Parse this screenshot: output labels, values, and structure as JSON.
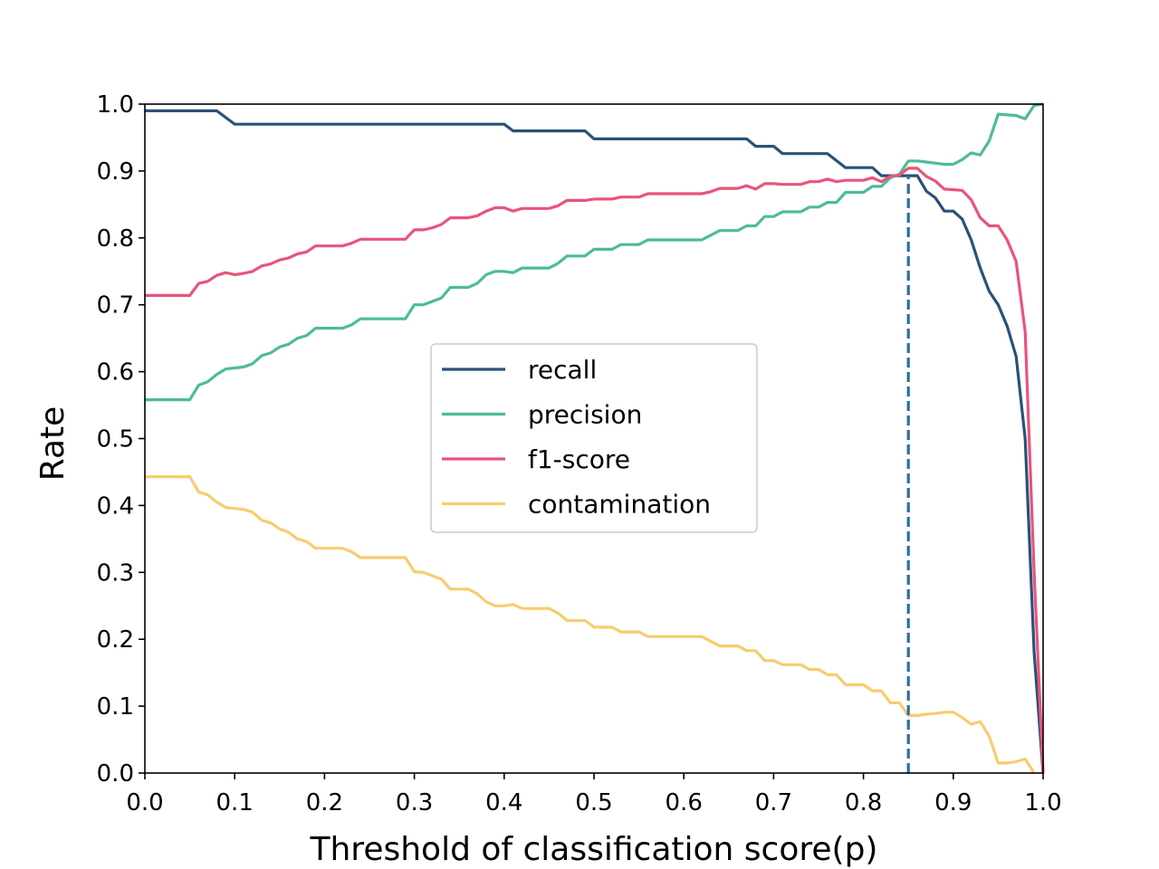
{
  "chart_data": {
    "type": "line",
    "title": "",
    "xlabel": "Threshold of classification score(p)",
    "ylabel": "Rate",
    "xlim": [
      0,
      1
    ],
    "ylim": [
      0,
      1
    ],
    "x_ticks": [
      "0.0",
      "0.1",
      "0.2",
      "0.3",
      "0.4",
      "0.5",
      "0.6",
      "0.7",
      "0.8",
      "0.9",
      "1.0"
    ],
    "y_ticks": [
      "0.0",
      "0.1",
      "0.2",
      "0.3",
      "0.4",
      "0.5",
      "0.6",
      "0.7",
      "0.8",
      "0.9",
      "1.0"
    ],
    "grid": false,
    "legend_position": "center",
    "threshold_line": {
      "x": 0.85,
      "y_top": 0.893,
      "color": "#2a6f9e",
      "style": "dashed"
    },
    "series": [
      {
        "name": "recall",
        "color": "#2b5178",
        "points": [
          [
            0,
            0.99
          ],
          [
            0.08,
            0.99
          ],
          [
            0.1,
            0.97
          ],
          [
            0.4,
            0.97
          ],
          [
            0.41,
            0.96
          ],
          [
            0.49,
            0.96
          ],
          [
            0.5,
            0.948
          ],
          [
            0.67,
            0.948
          ],
          [
            0.68,
            0.937
          ],
          [
            0.7,
            0.937
          ],
          [
            0.71,
            0.926
          ],
          [
            0.76,
            0.926
          ],
          [
            0.78,
            0.905
          ],
          [
            0.81,
            0.905
          ],
          [
            0.82,
            0.893
          ],
          [
            0.86,
            0.893
          ],
          [
            0.87,
            0.87
          ],
          [
            0.88,
            0.86
          ],
          [
            0.89,
            0.84
          ],
          [
            0.9,
            0.84
          ],
          [
            0.91,
            0.828
          ],
          [
            0.92,
            0.797
          ],
          [
            0.93,
            0.755
          ],
          [
            0.94,
            0.72
          ],
          [
            0.95,
            0.7
          ],
          [
            0.96,
            0.668
          ],
          [
            0.97,
            0.623
          ],
          [
            0.98,
            0.5
          ],
          [
            0.99,
            0.18
          ],
          [
            1.0,
            0.0
          ]
        ]
      },
      {
        "name": "precision",
        "color": "#4dbc98",
        "points": [
          [
            0,
            0.558
          ],
          [
            0.05,
            0.558
          ],
          [
            0.06,
            0.58
          ],
          [
            0.07,
            0.585
          ],
          [
            0.08,
            0.596
          ],
          [
            0.09,
            0.604
          ],
          [
            0.11,
            0.607
          ],
          [
            0.12,
            0.612
          ],
          [
            0.13,
            0.624
          ],
          [
            0.14,
            0.628
          ],
          [
            0.15,
            0.637
          ],
          [
            0.16,
            0.641
          ],
          [
            0.17,
            0.65
          ],
          [
            0.18,
            0.654
          ],
          [
            0.19,
            0.665
          ],
          [
            0.22,
            0.665
          ],
          [
            0.23,
            0.67
          ],
          [
            0.24,
            0.679
          ],
          [
            0.29,
            0.679
          ],
          [
            0.3,
            0.7
          ],
          [
            0.31,
            0.7
          ],
          [
            0.32,
            0.705
          ],
          [
            0.33,
            0.71
          ],
          [
            0.34,
            0.726
          ],
          [
            0.36,
            0.726
          ],
          [
            0.37,
            0.732
          ],
          [
            0.38,
            0.745
          ],
          [
            0.39,
            0.75
          ],
          [
            0.4,
            0.75
          ],
          [
            0.41,
            0.748
          ],
          [
            0.42,
            0.755
          ],
          [
            0.45,
            0.755
          ],
          [
            0.46,
            0.762
          ],
          [
            0.47,
            0.773
          ],
          [
            0.49,
            0.773
          ],
          [
            0.5,
            0.783
          ],
          [
            0.52,
            0.783
          ],
          [
            0.53,
            0.79
          ],
          [
            0.55,
            0.79
          ],
          [
            0.56,
            0.797
          ],
          [
            0.62,
            0.797
          ],
          [
            0.63,
            0.804
          ],
          [
            0.64,
            0.811
          ],
          [
            0.66,
            0.811
          ],
          [
            0.67,
            0.818
          ],
          [
            0.68,
            0.818
          ],
          [
            0.69,
            0.832
          ],
          [
            0.7,
            0.832
          ],
          [
            0.71,
            0.839
          ],
          [
            0.73,
            0.839
          ],
          [
            0.74,
            0.846
          ],
          [
            0.75,
            0.846
          ],
          [
            0.76,
            0.853
          ],
          [
            0.77,
            0.853
          ],
          [
            0.78,
            0.868
          ],
          [
            0.8,
            0.868
          ],
          [
            0.81,
            0.877
          ],
          [
            0.82,
            0.877
          ],
          [
            0.83,
            0.89
          ],
          [
            0.84,
            0.895
          ],
          [
            0.85,
            0.915
          ],
          [
            0.86,
            0.915
          ],
          [
            0.89,
            0.91
          ],
          [
            0.9,
            0.91
          ],
          [
            0.91,
            0.917
          ],
          [
            0.92,
            0.927
          ],
          [
            0.93,
            0.924
          ],
          [
            0.94,
            0.945
          ],
          [
            0.95,
            0.985
          ],
          [
            0.97,
            0.983
          ],
          [
            0.98,
            0.978
          ],
          [
            0.99,
            0.998
          ],
          [
            1.0,
            1.0
          ]
        ]
      },
      {
        "name": "f1-score",
        "color": "#e8557a",
        "points": [
          [
            0,
            0.714
          ],
          [
            0.05,
            0.714
          ],
          [
            0.06,
            0.732
          ],
          [
            0.07,
            0.735
          ],
          [
            0.08,
            0.744
          ],
          [
            0.09,
            0.748
          ],
          [
            0.1,
            0.745
          ],
          [
            0.11,
            0.747
          ],
          [
            0.12,
            0.75
          ],
          [
            0.13,
            0.758
          ],
          [
            0.14,
            0.761
          ],
          [
            0.15,
            0.767
          ],
          [
            0.16,
            0.77
          ],
          [
            0.17,
            0.776
          ],
          [
            0.18,
            0.779
          ],
          [
            0.19,
            0.788
          ],
          [
            0.22,
            0.788
          ],
          [
            0.23,
            0.792
          ],
          [
            0.24,
            0.798
          ],
          [
            0.29,
            0.798
          ],
          [
            0.3,
            0.812
          ],
          [
            0.31,
            0.812
          ],
          [
            0.32,
            0.815
          ],
          [
            0.33,
            0.82
          ],
          [
            0.34,
            0.83
          ],
          [
            0.36,
            0.83
          ],
          [
            0.37,
            0.833
          ],
          [
            0.38,
            0.84
          ],
          [
            0.39,
            0.845
          ],
          [
            0.4,
            0.845
          ],
          [
            0.41,
            0.84
          ],
          [
            0.42,
            0.844
          ],
          [
            0.45,
            0.844
          ],
          [
            0.46,
            0.848
          ],
          [
            0.47,
            0.856
          ],
          [
            0.49,
            0.856
          ],
          [
            0.5,
            0.858
          ],
          [
            0.52,
            0.858
          ],
          [
            0.53,
            0.861
          ],
          [
            0.55,
            0.861
          ],
          [
            0.56,
            0.866
          ],
          [
            0.62,
            0.866
          ],
          [
            0.63,
            0.869
          ],
          [
            0.64,
            0.874
          ],
          [
            0.66,
            0.874
          ],
          [
            0.67,
            0.878
          ],
          [
            0.68,
            0.873
          ],
          [
            0.69,
            0.881
          ],
          [
            0.7,
            0.881
          ],
          [
            0.71,
            0.88
          ],
          [
            0.73,
            0.88
          ],
          [
            0.74,
            0.884
          ],
          [
            0.75,
            0.884
          ],
          [
            0.76,
            0.888
          ],
          [
            0.77,
            0.884
          ],
          [
            0.78,
            0.886
          ],
          [
            0.8,
            0.886
          ],
          [
            0.81,
            0.89
          ],
          [
            0.82,
            0.884
          ],
          [
            0.83,
            0.892
          ],
          [
            0.84,
            0.894
          ],
          [
            0.85,
            0.904
          ],
          [
            0.86,
            0.904
          ],
          [
            0.87,
            0.892
          ],
          [
            0.88,
            0.885
          ],
          [
            0.89,
            0.873
          ],
          [
            0.91,
            0.871
          ],
          [
            0.92,
            0.857
          ],
          [
            0.93,
            0.83
          ],
          [
            0.94,
            0.818
          ],
          [
            0.95,
            0.818
          ],
          [
            0.96,
            0.797
          ],
          [
            0.97,
            0.765
          ],
          [
            0.98,
            0.66
          ],
          [
            0.99,
            0.3
          ],
          [
            1.0,
            0.0
          ]
        ]
      },
      {
        "name": "contamination",
        "color": "#f8cc6e",
        "points": [
          [
            0,
            0.443
          ],
          [
            0.05,
            0.443
          ],
          [
            0.06,
            0.42
          ],
          [
            0.07,
            0.416
          ],
          [
            0.08,
            0.405
          ],
          [
            0.09,
            0.397
          ],
          [
            0.11,
            0.394
          ],
          [
            0.12,
            0.39
          ],
          [
            0.13,
            0.378
          ],
          [
            0.14,
            0.374
          ],
          [
            0.15,
            0.365
          ],
          [
            0.16,
            0.36
          ],
          [
            0.17,
            0.35
          ],
          [
            0.18,
            0.346
          ],
          [
            0.19,
            0.336
          ],
          [
            0.22,
            0.336
          ],
          [
            0.23,
            0.331
          ],
          [
            0.24,
            0.322
          ],
          [
            0.29,
            0.322
          ],
          [
            0.3,
            0.301
          ],
          [
            0.31,
            0.3
          ],
          [
            0.32,
            0.295
          ],
          [
            0.33,
            0.29
          ],
          [
            0.34,
            0.275
          ],
          [
            0.36,
            0.275
          ],
          [
            0.37,
            0.268
          ],
          [
            0.38,
            0.256
          ],
          [
            0.39,
            0.25
          ],
          [
            0.4,
            0.25
          ],
          [
            0.41,
            0.252
          ],
          [
            0.42,
            0.246
          ],
          [
            0.45,
            0.246
          ],
          [
            0.46,
            0.239
          ],
          [
            0.47,
            0.228
          ],
          [
            0.49,
            0.228
          ],
          [
            0.5,
            0.218
          ],
          [
            0.52,
            0.218
          ],
          [
            0.53,
            0.211
          ],
          [
            0.55,
            0.211
          ],
          [
            0.56,
            0.204
          ],
          [
            0.62,
            0.204
          ],
          [
            0.63,
            0.197
          ],
          [
            0.64,
            0.19
          ],
          [
            0.66,
            0.19
          ],
          [
            0.67,
            0.183
          ],
          [
            0.68,
            0.183
          ],
          [
            0.69,
            0.168
          ],
          [
            0.7,
            0.168
          ],
          [
            0.71,
            0.162
          ],
          [
            0.73,
            0.162
          ],
          [
            0.74,
            0.155
          ],
          [
            0.75,
            0.155
          ],
          [
            0.76,
            0.147
          ],
          [
            0.77,
            0.147
          ],
          [
            0.78,
            0.132
          ],
          [
            0.8,
            0.132
          ],
          [
            0.81,
            0.123
          ],
          [
            0.82,
            0.123
          ],
          [
            0.83,
            0.105
          ],
          [
            0.84,
            0.105
          ],
          [
            0.85,
            0.086
          ],
          [
            0.86,
            0.086
          ],
          [
            0.87,
            0.088
          ],
          [
            0.88,
            0.089
          ],
          [
            0.89,
            0.091
          ],
          [
            0.9,
            0.091
          ],
          [
            0.91,
            0.083
          ],
          [
            0.92,
            0.073
          ],
          [
            0.93,
            0.077
          ],
          [
            0.94,
            0.055
          ],
          [
            0.95,
            0.015
          ],
          [
            0.96,
            0.015
          ],
          [
            0.97,
            0.017
          ],
          [
            0.98,
            0.021
          ],
          [
            0.99,
            0.0
          ]
        ]
      }
    ]
  }
}
